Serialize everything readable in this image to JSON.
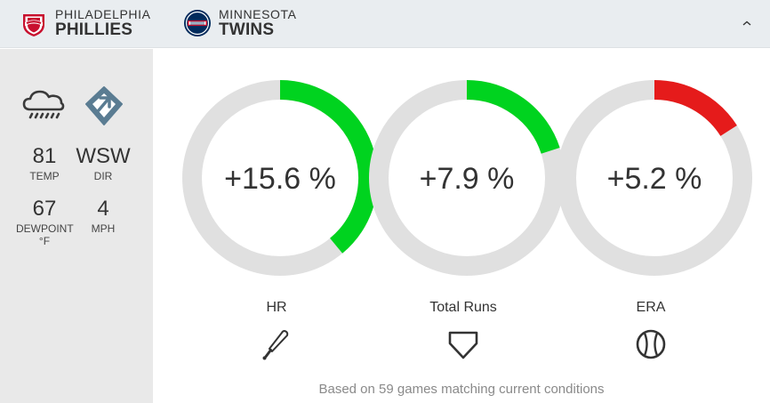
{
  "header": {
    "away_team": {
      "city": "PHILADELPHIA",
      "name": "PHILLIES",
      "logo_icon": "phillies-logo",
      "color": "#c8102e"
    },
    "home_team": {
      "city": "MINNESOTA",
      "name": "TWINS",
      "logo_icon": "twins-logo",
      "color": "#002b5c"
    },
    "collapse_icon": "chevron-up-icon"
  },
  "weather": {
    "condition_icon": "rain-cloud-icon",
    "wind_icon": "wind-direction-icon",
    "temp": {
      "value": "81",
      "label": "TEMP"
    },
    "dir": {
      "value": "WSW",
      "label": "DIR"
    },
    "dewpoint": {
      "value": "67",
      "label": "DEWPOINT\n°F"
    },
    "wind_speed": {
      "value": "4",
      "label": "MPH"
    }
  },
  "metrics": [
    {
      "label": "HR",
      "value_text": "+15.6 %",
      "fill_fraction": 0.39,
      "fill_color": "#00d31f",
      "icon": "bat-icon"
    },
    {
      "label": "Total Runs",
      "value_text": "+7.9 %",
      "fill_fraction": 0.2,
      "fill_color": "#00d31f",
      "icon": "home-plate-icon"
    },
    {
      "label": "ERA",
      "value_text": "+5.2 %",
      "fill_fraction": 0.16,
      "fill_color": "#e51b1b",
      "icon": "baseball-icon"
    }
  ],
  "colors": {
    "track": "#e0e0e0"
  },
  "footnote": "Based on 59 games matching current conditions"
}
